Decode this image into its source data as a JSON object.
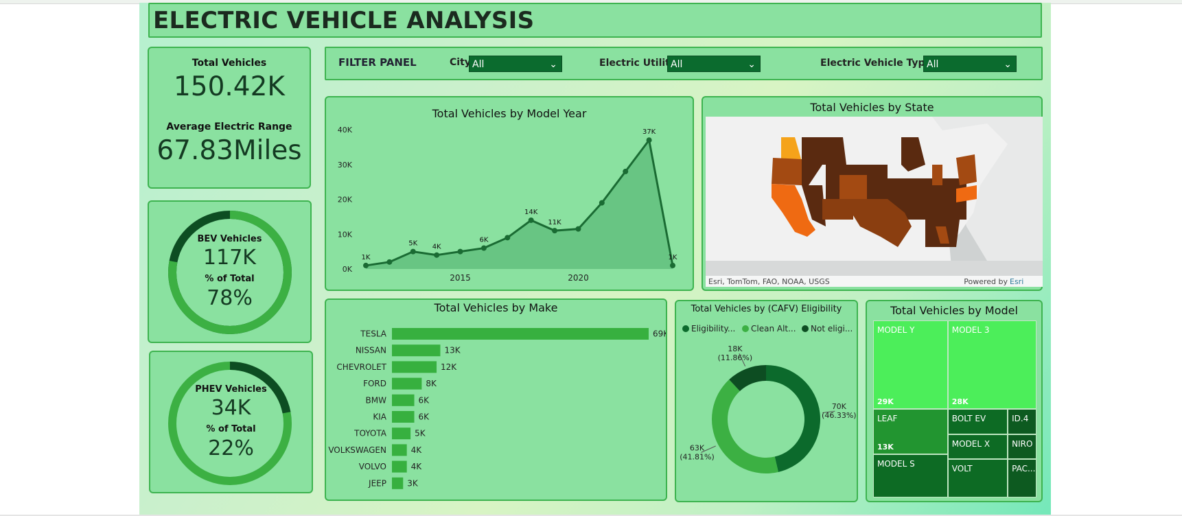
{
  "page": {
    "title": "ELECTRIC VEHICLE ANALYSIS",
    "filter_panel_label": "FILTER PANEL"
  },
  "kpi": {
    "total_vehicles_label": "Total Vehicles",
    "total_vehicles_value": "150.42K",
    "avg_range_label": "Average Electric Range",
    "avg_range_value": "67.83Miles"
  },
  "filters": [
    {
      "label": "City",
      "value": "All"
    },
    {
      "label": "Electric Utility",
      "value": "All"
    },
    {
      "label": "Electric Vehicle Type",
      "value": "All"
    }
  ],
  "bev": {
    "label": "BEV Vehicles",
    "value": "117K",
    "pct_label": "% of Total",
    "pct_value": "78%",
    "fraction": 0.78
  },
  "phev": {
    "label": "PHEV Vehicles",
    "value": "34K",
    "pct_label": "% of Total",
    "pct_value": "22%",
    "fraction": 0.22
  },
  "colors": {
    "dark_green": "#0d4d22",
    "mid_green": "#3cb043",
    "bar_green": "#37b03f",
    "area_fill": "#62bf7e",
    "line_green": "#1a6b33"
  },
  "map": {
    "title": "Total Vehicles by State",
    "attribution": "Esri, TomTom, FAO, NOAA, USGS",
    "powered_by": "Powered by",
    "powered_by_link": "Esri"
  },
  "chart_data": [
    {
      "type": "area",
      "title": "Total Vehicles by Model Year",
      "x": [
        2011,
        2012,
        2013,
        2014,
        2015,
        2016,
        2017,
        2018,
        2019,
        2020,
        2021,
        2022,
        2023,
        2024
      ],
      "values": [
        1000,
        2000,
        5000,
        4000,
        5000,
        6000,
        9000,
        14000,
        11000,
        11500,
        19000,
        28000,
        37000,
        1000
      ],
      "data_labels": [
        {
          "index": 0,
          "text": "1K"
        },
        {
          "index": 2,
          "text": "5K"
        },
        {
          "index": 3,
          "text": "4K"
        },
        {
          "index": 5,
          "text": "6K"
        },
        {
          "index": 7,
          "text": "14K"
        },
        {
          "index": 8,
          "text": "11K"
        },
        {
          "index": 12,
          "text": "37K"
        },
        {
          "index": 13,
          "text": "1K"
        }
      ],
      "y_ticks": [
        0,
        10000,
        20000,
        30000,
        40000
      ],
      "y_tick_labels": [
        "0K",
        "10K",
        "20K",
        "30K",
        "40K"
      ],
      "x_ticks": [
        2015,
        2020
      ],
      "x_tick_labels": [
        "2015",
        "2020"
      ],
      "ylim": [
        0,
        40000
      ],
      "xlim": [
        2011,
        2024
      ]
    },
    {
      "type": "bar",
      "orientation": "horizontal",
      "title": "Total Vehicles by Make",
      "categories": [
        "TESLA",
        "NISSAN",
        "CHEVROLET",
        "FORD",
        "BMW",
        "KIA",
        "TOYOTA",
        "VOLKSWAGEN",
        "VOLVO",
        "JEEP"
      ],
      "values": [
        69000,
        13000,
        12000,
        8000,
        6000,
        6000,
        5000,
        4000,
        4000,
        3000
      ],
      "value_labels": [
        "69K",
        "13K",
        "12K",
        "8K",
        "6K",
        "6K",
        "5K",
        "4K",
        "4K",
        "3K"
      ],
      "xlim": [
        0,
        69000
      ]
    },
    {
      "type": "pie",
      "title": "Total Vehicles by (CAFV) Eligibility",
      "legend": [
        "Eligibility...",
        "Clean Alt...",
        "Not eligi..."
      ],
      "labels": [
        "Eligibility unknown",
        "Clean Alternative Fuel Vehicle Eligible",
        "Not eligible"
      ],
      "values": [
        70000,
        63000,
        18000
      ],
      "value_labels": [
        "70K",
        "63K",
        "18K"
      ],
      "percent_labels": [
        "(46.33%)",
        "(41.81%)",
        "(11.86%)"
      ],
      "colors": [
        "#0c6a2c",
        "#3cb043",
        "#0d4d22"
      ],
      "legend_placement": "top"
    },
    {
      "type": "table",
      "chart_kind": "treemap",
      "title": "Total Vehicles by Model",
      "cells": [
        {
          "name": "MODEL Y",
          "value_label": "29K"
        },
        {
          "name": "MODEL 3",
          "value_label": "28K"
        },
        {
          "name": "LEAF",
          "value_label": "13K"
        },
        {
          "name": "BOLT EV",
          "value_label": ""
        },
        {
          "name": "ID.4",
          "value_label": ""
        },
        {
          "name": "MODEL X",
          "value_label": ""
        },
        {
          "name": "NIRO",
          "value_label": ""
        },
        {
          "name": "MODEL S",
          "value_label": ""
        },
        {
          "name": "VOLT",
          "value_label": ""
        },
        {
          "name": "PAC...",
          "value_label": ""
        }
      ]
    }
  ]
}
